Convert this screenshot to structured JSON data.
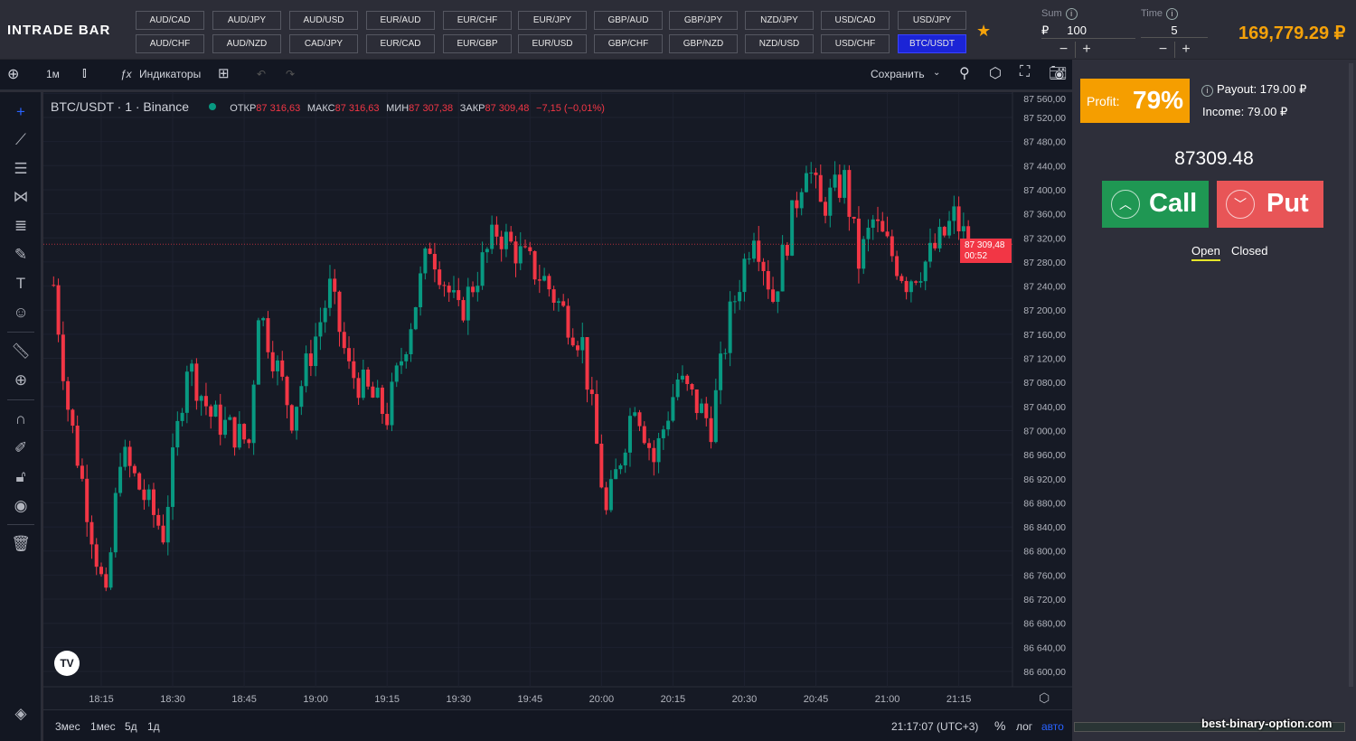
{
  "brand": {
    "logo": "INTRADE BAR"
  },
  "pairs_row1": [
    "AUD/CAD",
    "AUD/JPY",
    "AUD/USD",
    "EUR/AUD",
    "EUR/CHF",
    "EUR/JPY",
    "GBP/AUD",
    "GBP/JPY",
    "NZD/JPY",
    "USD/CAD",
    "USD/JPY"
  ],
  "pairs_row2": [
    "AUD/CHF",
    "AUD/NZD",
    "CAD/JPY",
    "EUR/CAD",
    "EUR/GBP",
    "EUR/USD",
    "GBP/CHF",
    "GBP/NZD",
    "NZD/USD",
    "USD/CHF",
    "BTC/USDT"
  ],
  "active_pair": "BTC/USDT",
  "trade": {
    "sum_label": "Sum",
    "currency": "₽",
    "sum": "100",
    "time_label": "Time",
    "time": "5",
    "minus": "−",
    "plus": "+"
  },
  "balance": "169,779.29 ₽",
  "toolbar": {
    "interval": "1м",
    "indicators": "Индикаторы",
    "save": "Сохранить"
  },
  "legend": {
    "symbol": "BTC/USDT · 1 · Binance",
    "o_label": "ОТКР",
    "o": "87 316,63",
    "h_label": "МАКС",
    "h": "87 316,63",
    "l_label": "МИН",
    "l": "87 307,38",
    "c_label": "ЗАКР",
    "c": "87 309,48",
    "change": "−7,15 (−0,01%)"
  },
  "price_axis": [
    "87 560,00",
    "87 520,00",
    "87 480,00",
    "87 440,00",
    "87 400,00",
    "87 360,00",
    "87 320,00",
    "87 280,00",
    "87 240,00",
    "87 200,00",
    "87 160,00",
    "87 120,00",
    "87 080,00",
    "87 040,00",
    "87 000,00",
    "86 960,00",
    "86 920,00",
    "86 880,00",
    "86 840,00",
    "86 800,00",
    "86 760,00",
    "86 720,00",
    "86 680,00",
    "86 640,00",
    "86 600,00"
  ],
  "current_price": {
    "value": "87 309,48",
    "countdown": "00:52"
  },
  "time_axis": [
    "18:15",
    "18:30",
    "18:45",
    "19:00",
    "19:15",
    "19:30",
    "19:45",
    "20:00",
    "20:15",
    "20:30",
    "20:45",
    "21:00",
    "21:15"
  ],
  "bottom": {
    "ranges": [
      "3мес",
      "1мес",
      "5д",
      "1д"
    ],
    "clock": "21:17:07 (UTC+3)",
    "percent": "%",
    "log": "лог",
    "auto": "авто"
  },
  "panel": {
    "profit_label": "Profit:",
    "profit": "79%",
    "payout": "Payout: 179.00 ₽",
    "income": "Income: 79.00 ₽",
    "price": "87309.48",
    "call": "Call",
    "put": "Put",
    "tab_open": "Open",
    "tab_closed": "Closed"
  },
  "watermark": "best-binary-option.com",
  "colors": {
    "up": "#089981",
    "down": "#f23645",
    "accent": "#f59e00",
    "call": "#1f9753",
    "put": "#e85557",
    "active_pair": "#1b24d6"
  },
  "chart_data": {
    "type": "candlestick",
    "interval": "1m",
    "ylim": [
      86580,
      87570
    ],
    "path": [
      [
        "18:05",
        87242
      ],
      [
        "18:08",
        87040
      ],
      [
        "18:16",
        86710
      ],
      [
        "18:19",
        86965
      ],
      [
        "18:28",
        86830
      ],
      [
        "18:33",
        87115
      ],
      [
        "18:38",
        87025
      ],
      [
        "18:46",
        86980
      ],
      [
        "18:48",
        87205
      ],
      [
        "18:55",
        87025
      ],
      [
        "19:03",
        87235
      ],
      [
        "19:07",
        87100
      ],
      [
        "19:15",
        87025
      ],
      [
        "19:24",
        87310
      ],
      [
        "19:30",
        87190
      ],
      [
        "19:38",
        87332
      ],
      [
        "19:48",
        87250
      ],
      [
        "19:56",
        87145
      ],
      [
        "20:01",
        86860
      ],
      [
        "20:07",
        87055
      ],
      [
        "20:11",
        86950
      ],
      [
        "20:16",
        87085
      ],
      [
        "20:23",
        87010
      ],
      [
        "20:27",
        87190
      ],
      [
        "20:32",
        87340
      ],
      [
        "20:36",
        87220
      ],
      [
        "20:43",
        87452
      ],
      [
        "20:46",
        87370
      ],
      [
        "20:51",
        87415
      ],
      [
        "20:54",
        87280
      ],
      [
        "20:57",
        87347
      ],
      [
        "21:04",
        87250
      ],
      [
        "21:08",
        87280
      ],
      [
        "21:12",
        87325
      ],
      [
        "21:14",
        87355
      ],
      [
        "21:17",
        87309
      ]
    ]
  }
}
